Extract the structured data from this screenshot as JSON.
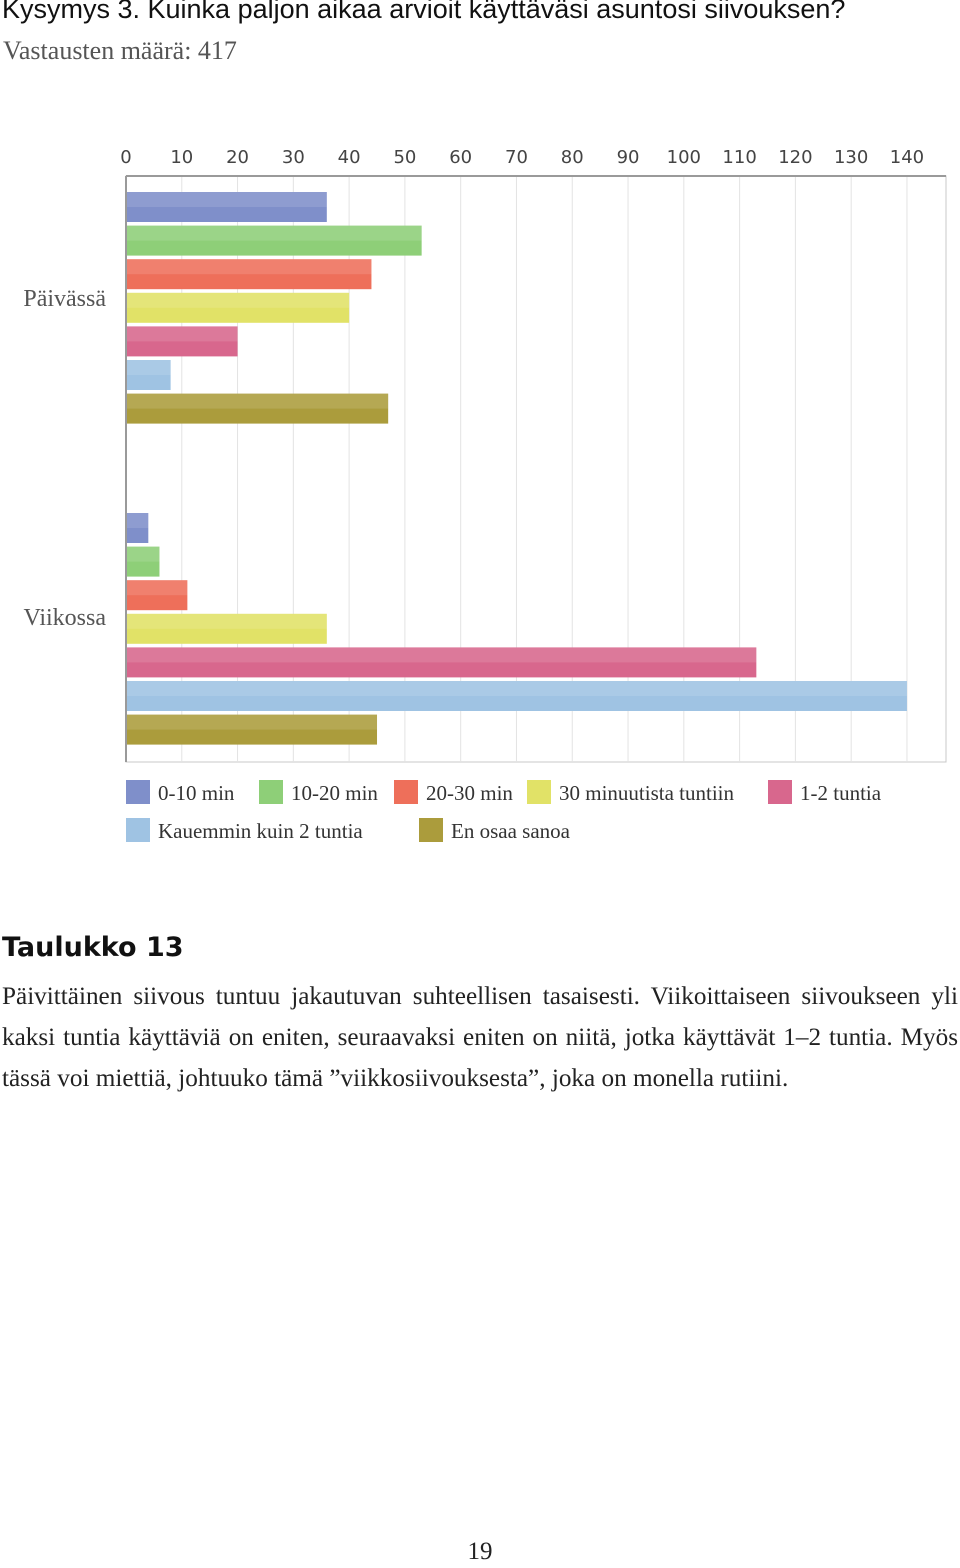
{
  "page": {
    "title": "Kysymys 3. Kuinka paljon aikaa arvioit käyttäväsi asuntosi siivouksen?",
    "subtitle": "Vastausten määrä: 417",
    "caption": "Taulukko 13",
    "paragraph": "Päivittäinen siivous tuntuu jakautuvan suhteellisen tasaisesti. Viikoittaiseen siivoukseen yli kaksi tuntia käyttäviä on eniten, seuraavaksi eniten on niitä, jotka käyttävät 1–2 tuntia. Myös tässä voi miettiä, johtuuko tämä ”viikkosiivoukse­sta”, joka on monella rutiini.",
    "page_number": "19"
  },
  "chart_data": {
    "type": "bar",
    "orientation": "horizontal",
    "categories": [
      "Päivässä",
      "Viikossa"
    ],
    "series": [
      {
        "name": "0-10 min",
        "color": "#7f8fca",
        "values": [
          36,
          4
        ]
      },
      {
        "name": "10-20 min",
        "color": "#8ecf78",
        "values": [
          53,
          6
        ]
      },
      {
        "name": "20-30 min",
        "color": "#ee6f5a",
        "values": [
          44,
          11
        ]
      },
      {
        "name": "30 minuutista tuntiin",
        "color": "#e1e267",
        "values": [
          40,
          36
        ]
      },
      {
        "name": "1-2 tuntia",
        "color": "#d8678d",
        "values": [
          20,
          113
        ]
      },
      {
        "name": "Kauemmin kuin 2 tuntia",
        "color": "#9fc3e3",
        "values": [
          8,
          140
        ]
      },
      {
        "name": "En osaa sanoa",
        "color": "#ab9c3c",
        "values": [
          47,
          45
        ]
      }
    ],
    "xlim": [
      0,
      147
    ],
    "xticks": [
      0,
      10,
      20,
      30,
      40,
      50,
      60,
      70,
      80,
      90,
      100,
      110,
      120,
      130,
      140
    ],
    "grid": true,
    "xaxis_position": "top",
    "legend_position": "bottom"
  }
}
